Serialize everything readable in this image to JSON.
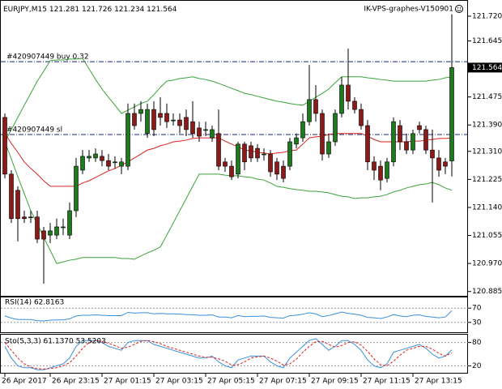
{
  "chart_data": [
    {
      "type": "candlestick",
      "title": "EURJPY,M15",
      "watermark": "IK-VPS-graphes-V150901",
      "ylim": [
        120.872,
        121.769
      ],
      "yticks": [
        {
          "value": 121.72,
          "label": "121.720"
        },
        {
          "value": 121.645,
          "label": "121.645"
        },
        {
          "value": 121.475,
          "label": "121.475"
        },
        {
          "value": 121.39,
          "label": "121.390"
        },
        {
          "value": 121.31,
          "label": "121.310"
        },
        {
          "value": 121.225,
          "label": "121.225"
        },
        {
          "value": 121.14,
          "label": "121.140"
        },
        {
          "value": 121.055,
          "label": "121.055"
        },
        {
          "value": 120.97,
          "label": "120.970"
        },
        {
          "value": 120.885,
          "label": "120.885"
        }
      ],
      "bull_color": "#1f7a1f",
      "bear_color": "#8b1a1a",
      "categories": [
        "26 Apr 2017",
        null,
        null,
        null,
        null,
        null,
        null,
        "26 Apr 23:15",
        null,
        null,
        null,
        null,
        null,
        null,
        null,
        "27 Apr 01:15",
        null,
        null,
        null,
        null,
        null,
        null,
        null,
        "27 Apr 03:15",
        null,
        null,
        null,
        null,
        null,
        null,
        null,
        "27 Apr 05:15",
        null,
        null,
        null,
        null,
        null,
        null,
        null,
        "27 Apr 07:15",
        null,
        null,
        null,
        null,
        null,
        null,
        null,
        "27 Apr 09:15",
        null,
        null,
        null,
        null,
        null,
        null,
        null,
        "27 Apr 11:15",
        null,
        null,
        null,
        null,
        null,
        null,
        null,
        "27 Apr 13:15",
        null,
        null,
        null,
        null,
        null,
        null
      ],
      "candles": [
        [
          121.413,
          121.425,
          121.228,
          121.241
        ],
        [
          121.241,
          121.253,
          121.093,
          121.106
        ],
        [
          121.192,
          121.204,
          121.037,
          121.106
        ],
        [
          121.111,
          121.13,
          121.093,
          121.106
        ],
        [
          121.111,
          121.13,
          121.093,
          121.111
        ],
        [
          121.111,
          121.13,
          121.032,
          121.044
        ],
        [
          121.069,
          121.081,
          120.909,
          121.044
        ],
        [
          121.056,
          121.093,
          121.032,
          121.069
        ],
        [
          121.056,
          121.106,
          121.044,
          121.081
        ],
        [
          121.081,
          121.106,
          121.056,
          121.081
        ],
        [
          121.056,
          121.155,
          121.044,
          121.13
        ],
        [
          121.13,
          121.29,
          121.111,
          121.265
        ],
        [
          121.253,
          121.314,
          121.241,
          121.295
        ],
        [
          121.29,
          121.314,
          121.278,
          121.295
        ],
        [
          121.29,
          121.319,
          121.278,
          121.302
        ],
        [
          121.295,
          121.314,
          121.265,
          121.282
        ],
        [
          121.282,
          121.302,
          121.253,
          121.265
        ],
        [
          121.278,
          121.295,
          121.258,
          121.278
        ],
        [
          121.265,
          121.29,
          121.241,
          121.278
        ],
        [
          121.265,
          121.455,
          121.253,
          121.425
        ],
        [
          121.425,
          121.455,
          121.376,
          121.388
        ],
        [
          121.425,
          121.462,
          121.4,
          121.437
        ],
        [
          121.364,
          121.455,
          121.351,
          121.437
        ],
        [
          121.437,
          121.462,
          121.356,
          121.376
        ],
        [
          121.425,
          121.474,
          121.388,
          121.413
        ],
        [
          121.425,
          121.455,
          121.381,
          121.4
        ],
        [
          121.405,
          121.425,
          121.388,
          121.405
        ],
        [
          121.405,
          121.425,
          121.364,
          121.388
        ],
        [
          121.413,
          121.437,
          121.356,
          121.376
        ],
        [
          121.4,
          121.462,
          121.351,
          121.364
        ],
        [
          121.381,
          121.4,
          121.339,
          121.356
        ],
        [
          121.376,
          121.4,
          121.356,
          121.376
        ],
        [
          121.351,
          121.388,
          121.339,
          121.376
        ],
        [
          121.364,
          121.437,
          121.253,
          121.265
        ],
        [
          121.278,
          121.29,
          121.248,
          121.265
        ],
        [
          121.265,
          121.282,
          121.223,
          121.233
        ],
        [
          121.241,
          121.339,
          121.228,
          121.332
        ],
        [
          121.332,
          121.339,
          121.253,
          121.278
        ],
        [
          121.327,
          121.339,
          121.278,
          121.29
        ],
        [
          121.319,
          121.332,
          121.278,
          121.29
        ],
        [
          121.302,
          121.319,
          121.282,
          121.302
        ],
        [
          121.302,
          121.314,
          121.233,
          121.248
        ],
        [
          121.278,
          121.29,
          121.223,
          121.241
        ],
        [
          121.265,
          121.282,
          121.216,
          121.228
        ],
        [
          121.265,
          121.351,
          121.253,
          121.339
        ],
        [
          121.332,
          121.364,
          121.319,
          121.351
        ],
        [
          121.351,
          121.425,
          121.339,
          121.4
        ],
        [
          121.4,
          121.572,
          121.388,
          121.467
        ],
        [
          121.467,
          121.511,
          121.4,
          121.425
        ],
        [
          121.425,
          121.437,
          121.282,
          121.302
        ],
        [
          121.302,
          121.364,
          121.29,
          121.339
        ],
        [
          121.339,
          121.437,
          121.327,
          121.425
        ],
        [
          121.425,
          121.536,
          121.413,
          121.511
        ],
        [
          121.511,
          121.622,
          121.437,
          121.462
        ],
        [
          121.462,
          121.474,
          121.425,
          121.437
        ],
        [
          121.437,
          121.455,
          121.376,
          121.388
        ],
        [
          121.388,
          121.405,
          121.253,
          121.278
        ],
        [
          121.278,
          121.295,
          121.223,
          121.253
        ],
        [
          121.265,
          121.282,
          121.192,
          121.223
        ],
        [
          121.228,
          121.29,
          121.216,
          121.278
        ],
        [
          121.278,
          121.413,
          121.265,
          121.4
        ],
        [
          121.388,
          121.405,
          121.314,
          121.339
        ],
        [
          121.339,
          121.364,
          121.302,
          121.314
        ],
        [
          121.314,
          121.376,
          121.302,
          121.364
        ],
        [
          121.388,
          121.4,
          121.364,
          121.376
        ],
        [
          121.376,
          121.388,
          121.302,
          121.314
        ],
        [
          121.314,
          121.376,
          121.155,
          121.29
        ],
        [
          121.29,
          121.314,
          121.233,
          121.253
        ],
        [
          121.278,
          121.29,
          121.241,
          121.265
        ],
        [
          121.281,
          121.726,
          121.234,
          121.564
        ]
      ],
      "series": [
        {
          "color": "#3aa33a",
          "values": [
            121.339,
            121.376,
            121.413,
            121.45,
            121.486,
            121.523,
            121.553,
            121.585,
            121.587,
            121.587,
            121.59,
            121.59,
            121.592,
            121.56,
            121.528,
            121.499,
            121.474,
            121.45,
            121.425,
            121.435,
            121.445,
            121.455,
            121.462,
            121.482,
            121.504,
            121.523,
            121.526,
            121.531,
            121.533,
            121.536,
            121.531,
            121.528,
            121.523,
            121.516,
            121.509,
            121.501,
            121.494,
            121.486,
            121.482,
            121.477,
            121.472,
            121.467,
            121.462,
            121.459,
            121.455,
            121.452,
            121.45,
            121.462,
            121.474,
            121.486,
            121.499,
            121.518,
            121.536,
            121.536,
            121.536,
            121.536,
            121.533,
            121.531,
            121.528,
            121.526,
            121.523,
            121.523,
            121.523,
            121.523,
            121.523,
            121.523,
            121.526,
            121.528,
            121.533,
            121.536
          ]
        },
        {
          "color": "#3aa33a",
          "values": [
            121.339,
            121.287,
            121.233,
            121.182,
            121.13,
            121.091,
            121.049,
            121.01,
            120.97,
            120.975,
            120.98,
            120.983,
            120.988,
            120.988,
            120.988,
            120.988,
            120.988,
            120.988,
            120.985,
            120.985,
            120.983,
            120.993,
            121.002,
            121.01,
            121.02,
            121.056,
            121.093,
            121.13,
            121.167,
            121.204,
            121.241,
            121.241,
            121.241,
            121.241,
            121.238,
            121.236,
            121.236,
            121.233,
            121.231,
            121.226,
            121.223,
            121.214,
            121.204,
            121.201,
            121.197,
            121.194,
            121.192,
            121.189,
            121.189,
            121.187,
            121.184,
            121.179,
            121.174,
            121.172,
            121.167,
            121.169,
            121.169,
            121.172,
            121.174,
            121.179,
            121.187,
            121.192,
            121.199,
            121.204,
            121.209,
            121.211,
            121.216,
            121.209,
            121.199,
            121.192
          ]
        },
        {
          "color": "#dd2222",
          "values": [
            121.364,
            121.334,
            121.307,
            121.278,
            121.258,
            121.241,
            121.221,
            121.204,
            121.204,
            121.204,
            121.204,
            121.204,
            121.214,
            121.221,
            121.231,
            121.241,
            121.251,
            121.258,
            121.268,
            121.278,
            121.29,
            121.302,
            121.314,
            121.319,
            121.327,
            121.332,
            121.339,
            121.341,
            121.344,
            121.349,
            121.351,
            121.351,
            121.351,
            121.351,
            121.341,
            121.332,
            121.324,
            121.314,
            121.312,
            121.307,
            121.305,
            121.302,
            121.305,
            121.307,
            121.312,
            121.314,
            121.332,
            121.351,
            121.354,
            121.356,
            121.361,
            121.364,
            121.364,
            121.364,
            121.364,
            121.364,
            121.356,
            121.346,
            121.339,
            121.339,
            121.339,
            121.339,
            121.339,
            121.341,
            121.341,
            121.344,
            121.346,
            121.349,
            121.349,
            121.351
          ]
        }
      ],
      "levels": [
        {
          "label": "#420907449 buy 0.32",
          "value": 121.582,
          "color": "#1a237e"
        },
        {
          "label": "#420907449 sl",
          "value": 121.361,
          "color": "#1a237e"
        }
      ]
    },
    {
      "type": "line",
      "label": "RSI(14) 62.8163",
      "ylim": [
        0,
        100
      ],
      "yticks": [
        30,
        70
      ],
      "grid": true,
      "series": [
        {
          "color": "#3b8fd9",
          "values": [
            48,
            42,
            38,
            38,
            38,
            35,
            34,
            36,
            37,
            37,
            40,
            48,
            50,
            50,
            51,
            50,
            49,
            49,
            49,
            58,
            56,
            57,
            57,
            54,
            55,
            54,
            54,
            53,
            52,
            51,
            50,
            50,
            51,
            45,
            45,
            43,
            49,
            46,
            47,
            47,
            48,
            44,
            43,
            42,
            49,
            50,
            53,
            57,
            54,
            46,
            49,
            54,
            59,
            55,
            53,
            50,
            44,
            43,
            41,
            45,
            52,
            48,
            46,
            50,
            51,
            47,
            45,
            43,
            45,
            62.8163
          ]
        }
      ]
    },
    {
      "type": "line",
      "label": "Sto(5,3,3) 61.1370 53.5203",
      "ylim": [
        0,
        100
      ],
      "yticks": [
        20,
        80
      ],
      "grid": true,
      "series": [
        {
          "color": "#3b8fd9",
          "dashed": false,
          "values": [
            70,
            40,
            20,
            15,
            15,
            10,
            10,
            15,
            20,
            25,
            40,
            70,
            85,
            85,
            85,
            80,
            70,
            65,
            60,
            80,
            85,
            85,
            85,
            75,
            70,
            65,
            60,
            55,
            50,
            45,
            40,
            40,
            45,
            30,
            20,
            15,
            35,
            40,
            45,
            45,
            45,
            30,
            20,
            15,
            40,
            55,
            70,
            85,
            90,
            75,
            60,
            70,
            85,
            85,
            75,
            60,
            35,
            20,
            15,
            25,
            55,
            60,
            65,
            70,
            75,
            65,
            50,
            40,
            45,
            61.137
          ]
        },
        {
          "color": "#dd2222",
          "dashed": true,
          "values": [
            80,
            60,
            40,
            25,
            17,
            13,
            12,
            13,
            15,
            20,
            28,
            45,
            65,
            80,
            85,
            83,
            78,
            72,
            65,
            68,
            75,
            83,
            85,
            82,
            77,
            70,
            65,
            60,
            55,
            50,
            45,
            42,
            42,
            38,
            32,
            22,
            23,
            30,
            40,
            43,
            45,
            40,
            32,
            22,
            25,
            37,
            55,
            70,
            82,
            83,
            75,
            68,
            72,
            80,
            82,
            73,
            57,
            38,
            23,
            20,
            32,
            47,
            60,
            65,
            70,
            70,
            63,
            52,
            45,
            53.5203
          ]
        }
      ]
    }
  ]
}
